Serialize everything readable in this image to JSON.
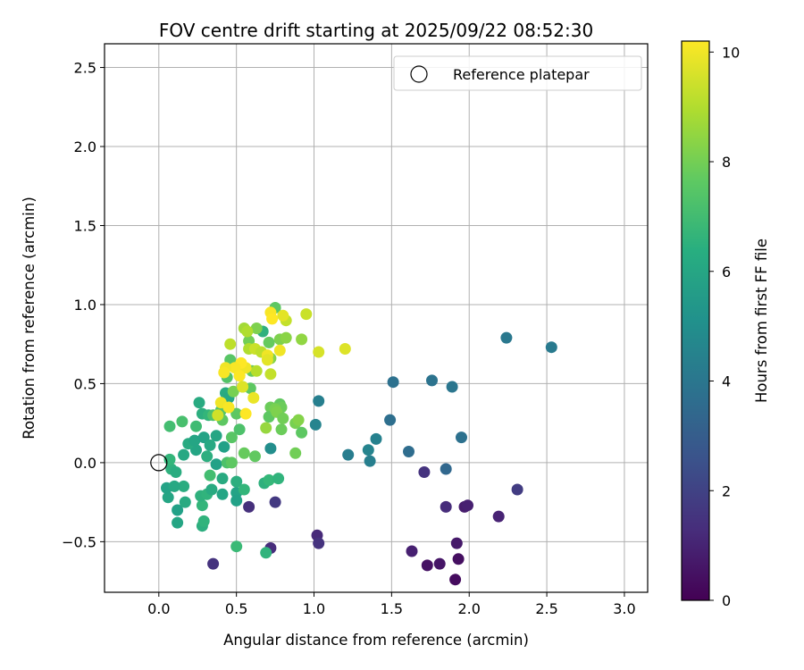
{
  "chart_data": {
    "type": "scatter",
    "title": "FOV centre drift starting at 2025/09/22 08:52:30",
    "xlabel": "Angular distance from reference (arcmin)",
    "ylabel": "Rotation from reference (arcmin)",
    "xlim": [
      -0.35,
      3.15
    ],
    "ylim": [
      -0.82,
      2.65
    ],
    "x_ticks": [
      0.0,
      0.5,
      1.0,
      1.5,
      2.0,
      2.5,
      3.0
    ],
    "x_tick_labels": [
      "0.0",
      "0.5",
      "1.0",
      "1.5",
      "2.0",
      "2.5",
      "3.0"
    ],
    "y_ticks": [
      -0.5,
      0.0,
      0.5,
      1.0,
      1.5,
      2.0,
      2.5
    ],
    "y_tick_labels": [
      "−0.5",
      "0.0",
      "0.5",
      "1.0",
      "1.5",
      "2.0",
      "2.5"
    ],
    "grid": true,
    "legend": {
      "placement": "top-right",
      "entries": [
        "Reference platepar"
      ]
    },
    "reference_point": {
      "x": 0.0,
      "y": 0.0
    },
    "colorbar": {
      "label": "Hours from first FF file",
      "range": [
        0,
        10.2
      ],
      "ticks": [
        0,
        2,
        4,
        6,
        8,
        10
      ],
      "tick_labels": [
        "0",
        "2",
        "4",
        "6",
        "8",
        "10"
      ],
      "colormap": "viridis"
    },
    "points": [
      {
        "x": 1.91,
        "y": -0.74,
        "c": 0.3
      },
      {
        "x": 1.73,
        "y": -0.65,
        "c": 0.5
      },
      {
        "x": 1.81,
        "y": -0.64,
        "c": 0.6
      },
      {
        "x": 1.93,
        "y": -0.61,
        "c": 0.4
      },
      {
        "x": 1.92,
        "y": -0.51,
        "c": 0.7
      },
      {
        "x": 1.63,
        "y": -0.56,
        "c": 0.9
      },
      {
        "x": 1.97,
        "y": -0.28,
        "c": 0.8
      },
      {
        "x": 1.99,
        "y": -0.27,
        "c": 0.9
      },
      {
        "x": 2.19,
        "y": -0.34,
        "c": 1.0
      },
      {
        "x": 1.85,
        "y": -0.28,
        "c": 1.3
      },
      {
        "x": 1.71,
        "y": -0.06,
        "c": 1.5
      },
      {
        "x": 2.31,
        "y": -0.17,
        "c": 1.8
      },
      {
        "x": 1.02,
        "y": -0.46,
        "c": 1.2
      },
      {
        "x": 1.03,
        "y": -0.51,
        "c": 1.5
      },
      {
        "x": 0.72,
        "y": -0.54,
        "c": 1.3
      },
      {
        "x": 0.35,
        "y": -0.64,
        "c": 1.5
      },
      {
        "x": 0.58,
        "y": -0.28,
        "c": 1.4
      },
      {
        "x": 0.75,
        "y": -0.25,
        "c": 1.7
      },
      {
        "x": 1.85,
        "y": -0.04,
        "c": 3.4
      },
      {
        "x": 1.61,
        "y": 0.07,
        "c": 3.6
      },
      {
        "x": 1.95,
        "y": 0.16,
        "c": 3.8
      },
      {
        "x": 1.49,
        "y": 0.27,
        "c": 3.7
      },
      {
        "x": 1.51,
        "y": 0.51,
        "c": 3.8
      },
      {
        "x": 1.76,
        "y": 0.52,
        "c": 3.9
      },
      {
        "x": 1.89,
        "y": 0.48,
        "c": 4.0
      },
      {
        "x": 2.24,
        "y": 0.79,
        "c": 4.1
      },
      {
        "x": 2.53,
        "y": 0.73,
        "c": 4.2
      },
      {
        "x": 1.22,
        "y": 0.05,
        "c": 4.3
      },
      {
        "x": 1.36,
        "y": 0.01,
        "c": 4.4
      },
      {
        "x": 1.35,
        "y": 0.08,
        "c": 4.6
      },
      {
        "x": 1.4,
        "y": 0.15,
        "c": 4.5
      },
      {
        "x": 1.03,
        "y": 0.39,
        "c": 4.4
      },
      {
        "x": 1.01,
        "y": 0.24,
        "c": 4.6
      },
      {
        "x": 0.72,
        "y": 0.09,
        "c": 5.0
      },
      {
        "x": 0.12,
        "y": -0.38,
        "c": 6.0
      },
      {
        "x": 0.28,
        "y": -0.4,
        "c": 6.4
      },
      {
        "x": 0.29,
        "y": -0.37,
        "c": 6.6
      },
      {
        "x": 0.12,
        "y": -0.3,
        "c": 5.8
      },
      {
        "x": 0.17,
        "y": -0.25,
        "c": 6.2
      },
      {
        "x": 0.28,
        "y": -0.27,
        "c": 6.7
      },
      {
        "x": 0.06,
        "y": -0.22,
        "c": 6.0
      },
      {
        "x": 0.16,
        "y": -0.15,
        "c": 6.3
      },
      {
        "x": 0.05,
        "y": -0.16,
        "c": 5.9
      },
      {
        "x": 0.1,
        "y": -0.15,
        "c": 6.1
      },
      {
        "x": 0.27,
        "y": -0.21,
        "c": 6.5
      },
      {
        "x": 0.31,
        "y": -0.2,
        "c": 6.6
      },
      {
        "x": 0.34,
        "y": -0.17,
        "c": 6.2
      },
      {
        "x": 0.41,
        "y": -0.2,
        "c": 6.0
      },
      {
        "x": 0.5,
        "y": -0.19,
        "c": 5.9
      },
      {
        "x": 0.5,
        "y": -0.24,
        "c": 5.8
      },
      {
        "x": 0.5,
        "y": -0.12,
        "c": 6.4
      },
      {
        "x": 0.55,
        "y": -0.17,
        "c": 6.7
      },
      {
        "x": 0.68,
        "y": -0.13,
        "c": 6.5
      },
      {
        "x": 0.71,
        "y": -0.11,
        "c": 6.8
      },
      {
        "x": 0.77,
        "y": -0.1,
        "c": 6.6
      },
      {
        "x": 0.69,
        "y": -0.57,
        "c": 6.6
      },
      {
        "x": 0.5,
        "y": -0.53,
        "c": 6.9
      },
      {
        "x": 0.08,
        "y": -0.04,
        "c": 6.5
      },
      {
        "x": 0.11,
        "y": -0.06,
        "c": 6.3
      },
      {
        "x": 0.07,
        "y": 0.02,
        "c": 6.7
      },
      {
        "x": 0.16,
        "y": 0.05,
        "c": 6.1
      },
      {
        "x": 0.24,
        "y": 0.08,
        "c": 6.0
      },
      {
        "x": 0.31,
        "y": 0.04,
        "c": 6.4
      },
      {
        "x": 0.37,
        "y": -0.01,
        "c": 5.8
      },
      {
        "x": 0.41,
        "y": -0.1,
        "c": 6.2
      },
      {
        "x": 0.33,
        "y": -0.08,
        "c": 7.1
      },
      {
        "x": 0.19,
        "y": 0.12,
        "c": 6.2
      },
      {
        "x": 0.23,
        "y": 0.14,
        "c": 6.0
      },
      {
        "x": 0.29,
        "y": 0.16,
        "c": 5.9
      },
      {
        "x": 0.33,
        "y": 0.11,
        "c": 6.1
      },
      {
        "x": 0.37,
        "y": 0.17,
        "c": 6.0
      },
      {
        "x": 0.42,
        "y": 0.1,
        "c": 5.8
      },
      {
        "x": 0.28,
        "y": 0.31,
        "c": 6.4
      },
      {
        "x": 0.26,
        "y": 0.38,
        "c": 6.2
      },
      {
        "x": 0.32,
        "y": 0.3,
        "c": 6.7
      },
      {
        "x": 0.42,
        "y": 0.38,
        "c": 6.0
      },
      {
        "x": 0.43,
        "y": 0.44,
        "c": 6.2
      },
      {
        "x": 0.45,
        "y": 0.41,
        "c": 6.1
      },
      {
        "x": 0.67,
        "y": 0.83,
        "c": 6.5
      },
      {
        "x": 0.44,
        "y": 0.0,
        "c": 7.3
      },
      {
        "x": 0.47,
        "y": 0.0,
        "c": 7.6
      },
      {
        "x": 0.52,
        "y": 0.21,
        "c": 7.3
      },
      {
        "x": 0.47,
        "y": 0.16,
        "c": 7.5
      },
      {
        "x": 0.07,
        "y": 0.23,
        "c": 7.1
      },
      {
        "x": 0.15,
        "y": 0.26,
        "c": 7.2
      },
      {
        "x": 0.24,
        "y": 0.23,
        "c": 7.0
      },
      {
        "x": 0.35,
        "y": 0.3,
        "c": 7.3
      },
      {
        "x": 0.41,
        "y": 0.27,
        "c": 7.6
      },
      {
        "x": 0.4,
        "y": 0.33,
        "c": 7.4
      },
      {
        "x": 0.5,
        "y": 0.31,
        "c": 7.6
      },
      {
        "x": 0.55,
        "y": 0.06,
        "c": 7.8
      },
      {
        "x": 0.62,
        "y": 0.04,
        "c": 7.7
      },
      {
        "x": 0.72,
        "y": 0.35,
        "c": 7.9
      },
      {
        "x": 0.71,
        "y": 0.29,
        "c": 7.6
      },
      {
        "x": 0.78,
        "y": 0.37,
        "c": 7.7
      },
      {
        "x": 0.79,
        "y": 0.35,
        "c": 7.9
      },
      {
        "x": 0.75,
        "y": 0.34,
        "c": 8.1
      },
      {
        "x": 0.76,
        "y": 0.32,
        "c": 8.2
      },
      {
        "x": 0.79,
        "y": 0.21,
        "c": 7.9
      },
      {
        "x": 0.8,
        "y": 0.28,
        "c": 8.0
      },
      {
        "x": 0.88,
        "y": 0.25,
        "c": 8.1
      },
      {
        "x": 0.9,
        "y": 0.27,
        "c": 8.3
      },
      {
        "x": 0.92,
        "y": 0.19,
        "c": 7.6
      },
      {
        "x": 0.88,
        "y": 0.06,
        "c": 8.0
      },
      {
        "x": 0.44,
        "y": 0.54,
        "c": 7.4
      },
      {
        "x": 0.46,
        "y": 0.65,
        "c": 7.5
      },
      {
        "x": 0.52,
        "y": 0.55,
        "c": 7.6
      },
      {
        "x": 0.6,
        "y": 0.58,
        "c": 7.8
      },
      {
        "x": 0.59,
        "y": 0.47,
        "c": 7.6
      },
      {
        "x": 0.54,
        "y": 0.48,
        "c": 8.0
      },
      {
        "x": 0.48,
        "y": 0.45,
        "c": 8.1
      },
      {
        "x": 0.63,
        "y": 0.85,
        "c": 8.2
      },
      {
        "x": 0.58,
        "y": 0.77,
        "c": 8.0
      },
      {
        "x": 0.71,
        "y": 0.76,
        "c": 7.8
      },
      {
        "x": 0.75,
        "y": 0.98,
        "c": 7.6
      },
      {
        "x": 0.78,
        "y": 0.78,
        "c": 8.2
      },
      {
        "x": 0.82,
        "y": 0.79,
        "c": 8.4
      },
      {
        "x": 0.72,
        "y": 0.66,
        "c": 8.3
      },
      {
        "x": 0.92,
        "y": 0.78,
        "c": 8.5
      },
      {
        "x": 0.69,
        "y": 0.22,
        "c": 8.6
      },
      {
        "x": 0.55,
        "y": 0.85,
        "c": 8.8
      },
      {
        "x": 0.57,
        "y": 0.83,
        "c": 9.0
      },
      {
        "x": 0.46,
        "y": 0.75,
        "c": 9.2
      },
      {
        "x": 0.58,
        "y": 0.72,
        "c": 9.0
      },
      {
        "x": 0.62,
        "y": 0.72,
        "c": 9.4
      },
      {
        "x": 0.66,
        "y": 0.7,
        "c": 9.2
      },
      {
        "x": 0.63,
        "y": 0.58,
        "c": 9.1
      },
      {
        "x": 0.72,
        "y": 0.56,
        "c": 9.3
      },
      {
        "x": 0.82,
        "y": 0.9,
        "c": 9.3
      },
      {
        "x": 0.95,
        "y": 0.94,
        "c": 9.4
      },
      {
        "x": 0.8,
        "y": 0.93,
        "c": 9.8
      },
      {
        "x": 1.03,
        "y": 0.7,
        "c": 9.6
      },
      {
        "x": 1.2,
        "y": 0.72,
        "c": 9.7
      },
      {
        "x": 0.78,
        "y": 0.71,
        "c": 10.0
      },
      {
        "x": 0.72,
        "y": 0.95,
        "c": 10.1
      },
      {
        "x": 0.73,
        "y": 0.91,
        "c": 10.2
      },
      {
        "x": 0.7,
        "y": 0.68,
        "c": 10.0
      },
      {
        "x": 0.7,
        "y": 0.65,
        "c": 9.8
      },
      {
        "x": 0.56,
        "y": 0.6,
        "c": 10.0
      },
      {
        "x": 0.53,
        "y": 0.63,
        "c": 10.2
      },
      {
        "x": 0.49,
        "y": 0.6,
        "c": 10.1
      },
      {
        "x": 0.43,
        "y": 0.6,
        "c": 10.0
      },
      {
        "x": 0.42,
        "y": 0.57,
        "c": 10.1
      },
      {
        "x": 0.52,
        "y": 0.55,
        "c": 10.2
      },
      {
        "x": 0.54,
        "y": 0.48,
        "c": 9.7
      },
      {
        "x": 0.61,
        "y": 0.41,
        "c": 9.9
      },
      {
        "x": 0.4,
        "y": 0.38,
        "c": 10.0
      },
      {
        "x": 0.45,
        "y": 0.35,
        "c": 10.1
      },
      {
        "x": 0.56,
        "y": 0.31,
        "c": 10.2
      },
      {
        "x": 0.38,
        "y": 0.3,
        "c": 9.5
      }
    ]
  }
}
